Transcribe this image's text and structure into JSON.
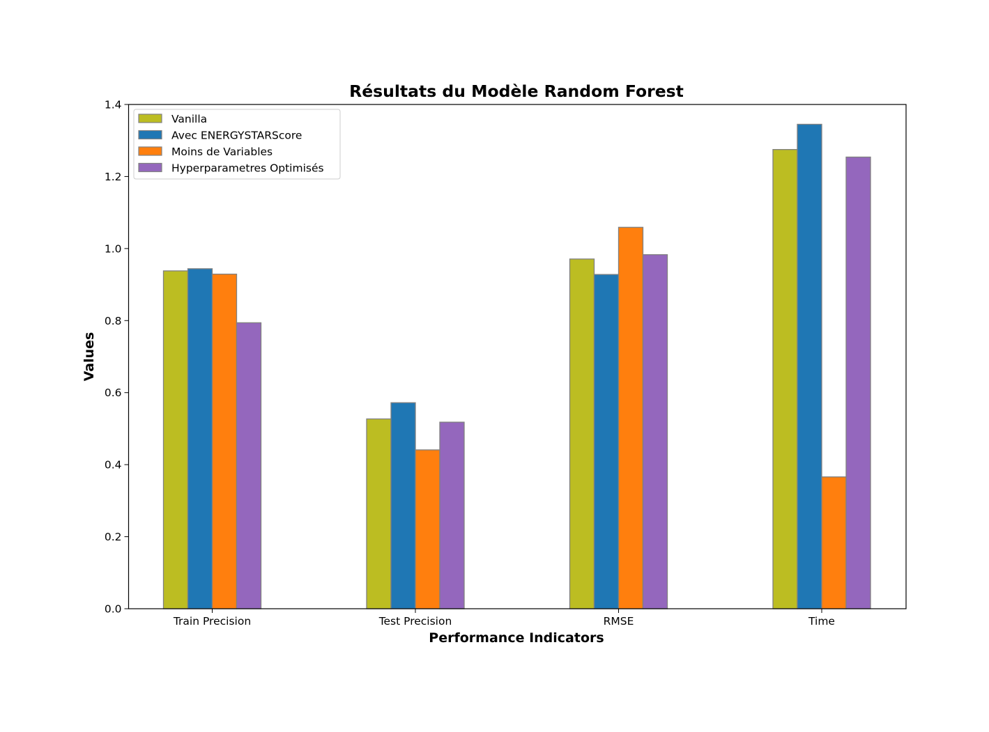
{
  "chart_data": {
    "type": "bar",
    "title": "Résultats du Modèle Random Forest",
    "xlabel": "Performance Indicators",
    "ylabel": "Values",
    "categories": [
      "Train Precision",
      "Test Precision",
      "RMSE",
      "Time"
    ],
    "ylim": [
      0,
      1.4
    ],
    "yticks": [
      "0.0",
      "0.2",
      "0.4",
      "0.6",
      "0.8",
      "1.0",
      "1.2",
      "1.4"
    ],
    "grid": false,
    "legend_position": "top-left",
    "series": [
      {
        "name": "Vanilla",
        "color": "#bcbd22",
        "values": [
          0.938,
          0.527,
          0.971,
          1.275
        ]
      },
      {
        "name": "Avec ENERGYSTARScore",
        "color": "#1f77b4",
        "values": [
          0.944,
          0.572,
          0.928,
          1.345
        ]
      },
      {
        "name": "Moins de Variables",
        "color": "#ff7f0e",
        "values": [
          0.929,
          0.441,
          1.059,
          0.366
        ]
      },
      {
        "name": "Hyperparametres Optimisés",
        "color": "#9467bd",
        "values": [
          0.794,
          0.518,
          0.983,
          1.254
        ]
      }
    ],
    "bar_edge_color": "#808080"
  }
}
